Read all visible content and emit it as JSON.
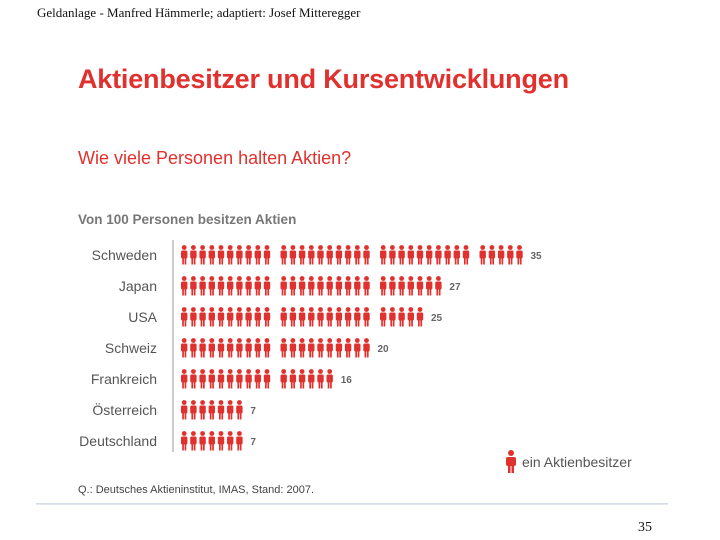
{
  "header": {
    "caption": "Geldanlage - Manfred Hämmerle; adaptiert: Josef Mitteregger"
  },
  "slide": {
    "title": "Aktienbesitzer und Kursentwicklungen",
    "subtitle": "Wie viele Personen halten Aktien?",
    "source": "Q.: Deutsches Aktieninstitut, IMAS, Stand: 2007.",
    "page_number": "35"
  },
  "chart_data": {
    "type": "bar",
    "style": "pictogram",
    "title": "Von 100 Personen besitzen Aktien",
    "categories": [
      "Schweden",
      "Japan",
      "USA",
      "Schweiz",
      "Frankreich",
      "Österreich",
      "Deutschland"
    ],
    "values": [
      35,
      27,
      25,
      20,
      16,
      7,
      7
    ],
    "units_per_group": 10,
    "legend": {
      "label": "ein Aktienbesitzer",
      "placement": "bottom-right"
    },
    "color": "#e0312e"
  }
}
